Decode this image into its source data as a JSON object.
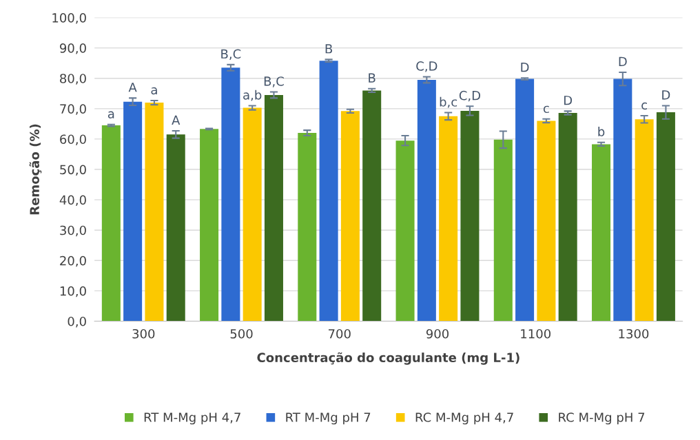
{
  "chart_data": {
    "type": "bar",
    "xlabel": "Concentração do coagulante (mg L-1)",
    "ylabel": "Remoção (%)",
    "categories": [
      "300",
      "500",
      "700",
      "900",
      "1100",
      "1300"
    ],
    "series": [
      {
        "name": "RT M-Mg pH 4,7",
        "color": "#6ab42f",
        "values": [
          64.5,
          63.3,
          62.0,
          59.5,
          59.8,
          58.3
        ],
        "errors": [
          0.3,
          0.2,
          0.9,
          1.6,
          2.8,
          0.6
        ],
        "value_labels": [
          "a",
          null,
          null,
          null,
          null,
          "b"
        ]
      },
      {
        "name": "RT M-Mg pH 7",
        "color": "#2e6bd1",
        "values": [
          72.3,
          83.5,
          85.8,
          79.5,
          79.8,
          79.8
        ],
        "errors": [
          1.2,
          1.0,
          0.4,
          1.0,
          0.3,
          2.2
        ],
        "value_labels": [
          "A",
          "B,C",
          "B",
          "C,D",
          "D",
          "D"
        ]
      },
      {
        "name": "RC M-Mg pH 4,7",
        "color": "#fbc800",
        "values": [
          72.0,
          70.3,
          69.2,
          67.5,
          66.0,
          66.5
        ],
        "errors": [
          0.7,
          0.7,
          0.6,
          1.2,
          0.6,
          1.2
        ],
        "value_labels": [
          "a",
          "a,b",
          null,
          "b,c",
          "c",
          "c"
        ]
      },
      {
        "name": "RC M-Mg pH 7",
        "color": "#3c6b20",
        "values": [
          61.5,
          74.5,
          76.0,
          69.3,
          68.6,
          68.8
        ],
        "errors": [
          1.2,
          1.0,
          0.6,
          1.5,
          0.6,
          2.2
        ],
        "value_labels": [
          "A",
          "B,C",
          "B",
          "C,D",
          "D",
          "D"
        ]
      }
    ],
    "ylim": [
      0,
      100
    ],
    "yticks": [
      {
        "value": 0,
        "label": "0,0"
      },
      {
        "value": 10,
        "label": "10,0"
      },
      {
        "value": 20,
        "label": "20,0"
      },
      {
        "value": 30,
        "label": "30,0"
      },
      {
        "value": 40,
        "label": "40,0"
      },
      {
        "value": 50,
        "label": "50,0"
      },
      {
        "value": 60,
        "label": "60,0"
      },
      {
        "value": 70,
        "label": "70,0"
      },
      {
        "value": 80,
        "label": "80,0"
      },
      {
        "value": 90,
        "label": "90,0"
      },
      {
        "value": 100,
        "label": "100,0"
      }
    ],
    "grid": "y",
    "legend": "bottom"
  }
}
